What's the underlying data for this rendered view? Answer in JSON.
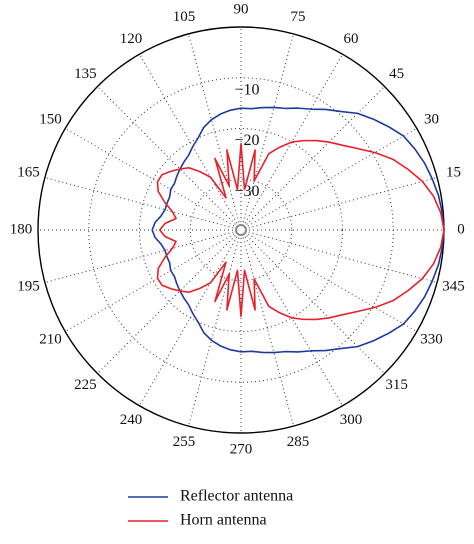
{
  "chart_data": {
    "type": "polar",
    "x": [
      0,
      5,
      10,
      15,
      20,
      25,
      30,
      35,
      40,
      45,
      50,
      55,
      60,
      65,
      70,
      75,
      80,
      85,
      90,
      95,
      100,
      105,
      110,
      115,
      120,
      125,
      130,
      135,
      140,
      145,
      150,
      155,
      160,
      165,
      170,
      175,
      180,
      185,
      190,
      195,
      200,
      205,
      210,
      215,
      220,
      225,
      230,
      235,
      240,
      245,
      250,
      255,
      260,
      265,
      270,
      275,
      280,
      285,
      290,
      295,
      300,
      305,
      310,
      315,
      320,
      325,
      330,
      335,
      340,
      345,
      350,
      355,
      360
    ],
    "series": [
      {
        "name": "Reflector antenna",
        "color": "#1f3a9e",
        "values": [
          0,
          -0.2,
          -0.5,
          -1,
          -1.5,
          -2.2,
          -3,
          -4.5,
          -6,
          -7.5,
          -9.5,
          -11,
          -12.5,
          -13.5,
          -14.5,
          -15,
          -15.5,
          -16,
          -16,
          -16.3,
          -16.8,
          -17.5,
          -18.5,
          -20,
          -21,
          -22,
          -22.5,
          -23,
          -23.5,
          -24,
          -24,
          -24.5,
          -24.5,
          -24.5,
          -24,
          -23,
          -22.5,
          -23,
          -24,
          -24.5,
          -24.5,
          -24.5,
          -24,
          -24,
          -23.5,
          -23,
          -22.5,
          -22,
          -21,
          -20,
          -18.5,
          -17.5,
          -16.8,
          -16.3,
          -16,
          -16,
          -15.5,
          -15,
          -14.5,
          -13.5,
          -12.5,
          -11,
          -9.5,
          -7.5,
          -6,
          -4.5,
          -3,
          -2.2,
          -1.5,
          -1,
          -0.5,
          -0.2,
          0
        ]
      },
      {
        "name": "Horn antenna",
        "color": "#e8202a",
        "values": [
          0,
          -0.5,
          -1.5,
          -3,
          -5,
          -7,
          -9.5,
          -12,
          -14,
          -15.5,
          -17,
          -18.5,
          -20,
          -22,
          -24,
          -30,
          -24,
          -32,
          -23,
          -32,
          -24,
          -31,
          -25,
          -33,
          -28,
          -26,
          -24,
          -23,
          -22,
          -21,
          -21,
          -22,
          -24,
          -26,
          -27,
          -25,
          -24,
          -25,
          -27,
          -26,
          -24,
          -22,
          -21,
          -21,
          -22,
          -23,
          -24,
          -26,
          -28,
          -33,
          -25,
          -31,
          -24,
          -32,
          -23,
          -32,
          -24,
          -30,
          -24,
          -22,
          -20,
          -18.5,
          -17,
          -15.5,
          -14,
          -12,
          -9.5,
          -7,
          -5,
          -3,
          -1.5,
          -0.5,
          0
        ]
      }
    ],
    "rlim": [
      -40,
      0
    ],
    "rticks": [
      {
        "value": -10,
        "label": "−10"
      },
      {
        "value": -20,
        "label": "−20"
      },
      {
        "value": -30,
        "label": "−30"
      }
    ],
    "thetaticks": [
      0,
      15,
      30,
      45,
      60,
      75,
      90,
      105,
      120,
      135,
      150,
      165,
      180,
      195,
      210,
      225,
      240,
      255,
      270,
      285,
      300,
      315,
      330,
      345
    ],
    "grid": true
  }
}
